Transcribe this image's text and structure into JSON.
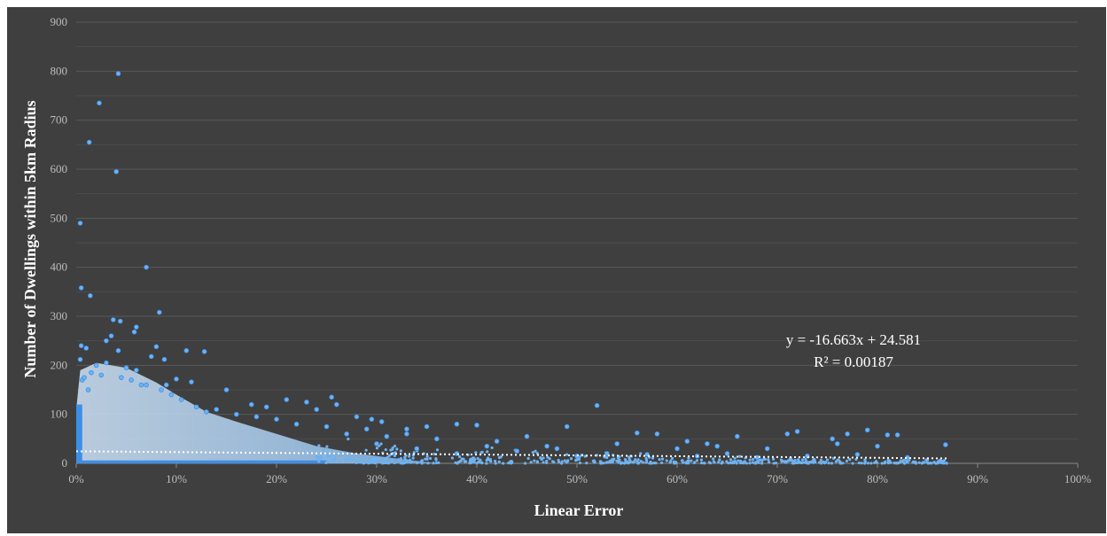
{
  "chart_data": {
    "type": "scatter",
    "title": "",
    "xlabel": "Linear Error",
    "ylabel": "Number of Dwellings within 5km Radius",
    "xlim": [
      0,
      1
    ],
    "ylim": [
      0,
      900
    ],
    "x_ticks": [
      "0%",
      "10%",
      "20%",
      "30%",
      "40%",
      "50%",
      "60%",
      "70%",
      "80%",
      "90%",
      "100%"
    ],
    "x_tick_values": [
      0,
      0.1,
      0.2,
      0.3,
      0.4,
      0.5,
      0.6,
      0.7,
      0.8,
      0.9,
      1.0
    ],
    "y_ticks": [
      "0",
      "100",
      "200",
      "300",
      "400",
      "500",
      "600",
      "700",
      "800",
      "900"
    ],
    "y_tick_values": [
      0,
      100,
      200,
      300,
      400,
      500,
      600,
      700,
      800,
      900
    ],
    "grid": true,
    "marker_color": "#6fb2f0",
    "marker_edge_color": "#3d8ee8",
    "trendline": {
      "slope": -16.663,
      "intercept": 24.581,
      "x_range": [
        0,
        0.87
      ],
      "style": "dotted",
      "color": "#ffffff",
      "equation_label": "y = -16.663x + 24.581",
      "r2_label": "R² = 0.00187"
    },
    "points": [
      [
        0.042,
        795
      ],
      [
        0.023,
        735
      ],
      [
        0.013,
        655
      ],
      [
        0.04,
        595
      ],
      [
        0.004,
        490
      ],
      [
        0.07,
        400
      ],
      [
        0.005,
        358
      ],
      [
        0.014,
        342
      ],
      [
        0.083,
        308
      ],
      [
        0.037,
        293
      ],
      [
        0.044,
        290
      ],
      [
        0.06,
        278
      ],
      [
        0.035,
        260
      ],
      [
        0.058,
        268
      ],
      [
        0.03,
        250
      ],
      [
        0.005,
        240
      ],
      [
        0.01,
        235
      ],
      [
        0.08,
        238
      ],
      [
        0.11,
        230
      ],
      [
        0.128,
        228
      ],
      [
        0.042,
        230
      ],
      [
        0.075,
        218
      ],
      [
        0.004,
        212
      ],
      [
        0.088,
        212
      ],
      [
        0.006,
        170
      ],
      [
        0.1,
        172
      ],
      [
        0.115,
        166
      ],
      [
        0.012,
        150
      ],
      [
        0.07,
        160
      ],
      [
        0.09,
        160
      ],
      [
        0.15,
        150
      ],
      [
        0.175,
        120
      ],
      [
        0.19,
        115
      ],
      [
        0.21,
        130
      ],
      [
        0.23,
        125
      ],
      [
        0.255,
        135
      ],
      [
        0.26,
        120
      ],
      [
        0.24,
        110
      ],
      [
        0.28,
        95
      ],
      [
        0.295,
        90
      ],
      [
        0.305,
        85
      ],
      [
        0.33,
        70
      ],
      [
        0.35,
        75
      ],
      [
        0.38,
        80
      ],
      [
        0.4,
        78
      ],
      [
        0.45,
        55
      ],
      [
        0.49,
        75
      ],
      [
        0.52,
        118
      ],
      [
        0.56,
        62
      ],
      [
        0.58,
        60
      ],
      [
        0.61,
        45
      ],
      [
        0.63,
        40
      ],
      [
        0.66,
        55
      ],
      [
        0.71,
        60
      ],
      [
        0.72,
        65
      ],
      [
        0.755,
        50
      ],
      [
        0.77,
        60
      ],
      [
        0.79,
        68
      ],
      [
        0.81,
        58
      ],
      [
        0.82,
        58
      ],
      [
        0.868,
        38
      ],
      [
        0.8,
        35
      ],
      [
        0.76,
        40
      ],
      [
        0.69,
        30
      ],
      [
        0.64,
        35
      ],
      [
        0.6,
        30
      ],
      [
        0.54,
        40
      ],
      [
        0.47,
        35
      ],
      [
        0.42,
        45
      ],
      [
        0.36,
        50
      ],
      [
        0.33,
        60
      ],
      [
        0.31,
        55
      ],
      [
        0.29,
        70
      ],
      [
        0.27,
        60
      ],
      [
        0.25,
        75
      ],
      [
        0.22,
        80
      ],
      [
        0.2,
        90
      ],
      [
        0.18,
        95
      ],
      [
        0.16,
        100
      ],
      [
        0.14,
        110
      ],
      [
        0.13,
        105
      ],
      [
        0.12,
        115
      ],
      [
        0.02,
        200
      ],
      [
        0.03,
        205
      ],
      [
        0.05,
        195
      ],
      [
        0.06,
        190
      ],
      [
        0.015,
        185
      ],
      [
        0.025,
        180
      ],
      [
        0.008,
        175
      ],
      [
        0.045,
        175
      ],
      [
        0.055,
        170
      ],
      [
        0.065,
        160
      ],
      [
        0.085,
        150
      ],
      [
        0.095,
        140
      ],
      [
        0.105,
        130
      ],
      [
        0.38,
        20
      ],
      [
        0.44,
        25
      ],
      [
        0.5,
        15
      ],
      [
        0.53,
        20
      ],
      [
        0.57,
        18
      ],
      [
        0.62,
        15
      ],
      [
        0.65,
        20
      ],
      [
        0.68,
        12
      ],
      [
        0.73,
        15
      ],
      [
        0.78,
        18
      ],
      [
        0.83,
        12
      ],
      [
        0.48,
        30
      ],
      [
        0.41,
        35
      ],
      [
        0.34,
        30
      ],
      [
        0.3,
        40
      ]
    ]
  }
}
